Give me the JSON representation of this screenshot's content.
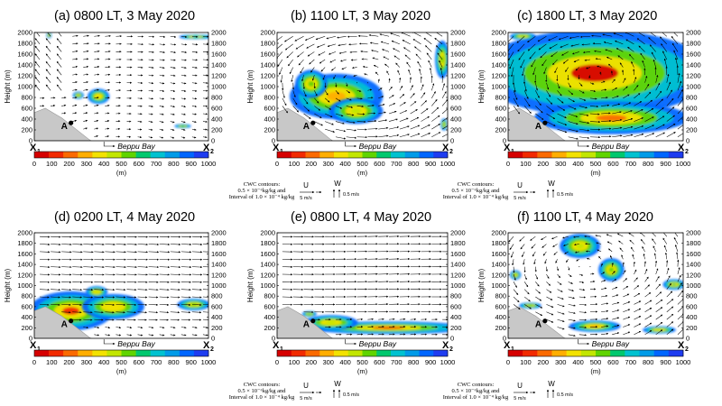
{
  "chart_data": {
    "type": "vector-field-with-color-shading",
    "panels": [
      {
        "id": "a",
        "title": "(a)  0800 LT, 3 May 2020",
        "clouds": [
          {
            "x": 80,
            "y": 1950,
            "rx": 15,
            "ry": 60,
            "peak": 3
          },
          {
            "x": 350,
            "y": 820,
            "rx": 60,
            "ry": 140,
            "peak": 4
          },
          {
            "x": 240,
            "y": 840,
            "rx": 30,
            "ry": 70,
            "peak": 2
          },
          {
            "x": 810,
            "y": 270,
            "rx": 45,
            "ry": 40,
            "peak": 1
          },
          {
            "x": 880,
            "y": 1920,
            "rx": 90,
            "ry": 45,
            "peak": 0
          }
        ]
      },
      {
        "id": "b",
        "title": "(b)  1100 LT, 3 May 2020",
        "clouds": [
          {
            "x": 330,
            "y": 820,
            "rx": 260,
            "ry": 420,
            "peak": 5
          },
          {
            "x": 440,
            "y": 550,
            "rx": 150,
            "ry": 240,
            "peak": 3
          },
          {
            "x": 190,
            "y": 1050,
            "rx": 90,
            "ry": 260,
            "peak": 2
          },
          {
            "x": 920,
            "y": 1500,
            "rx": 40,
            "ry": 350,
            "peak": 2
          },
          {
            "x": 930,
            "y": 300,
            "rx": 20,
            "ry": 110,
            "peak": 1
          }
        ]
      },
      {
        "id": "c",
        "title": "(c)  1800 LT, 3 May 2020",
        "clouds": [
          {
            "x": 470,
            "y": 1250,
            "rx": 640,
            "ry": 800,
            "peak": 9
          },
          {
            "x": 560,
            "y": 420,
            "rx": 420,
            "ry": 300,
            "peak": 6
          },
          {
            "x": 80,
            "y": 1930,
            "rx": 70,
            "ry": 70,
            "peak": 2
          }
        ]
      },
      {
        "id": "d",
        "title": "(d)  0200 LT, 4 May 2020",
        "clouds": [
          {
            "x": 200,
            "y": 520,
            "rx": 230,
            "ry": 370,
            "peak": 7
          },
          {
            "x": 430,
            "y": 600,
            "rx": 170,
            "ry": 240,
            "peak": 4
          },
          {
            "x": 340,
            "y": 880,
            "rx": 60,
            "ry": 110,
            "peak": 3
          },
          {
            "x": 870,
            "y": 640,
            "rx": 90,
            "ry": 110,
            "peak": 2
          }
        ]
      },
      {
        "id": "e",
        "title": "(e)  0800 LT, 4 May 2020",
        "clouds": [
          {
            "x": 620,
            "y": 200,
            "rx": 460,
            "ry": 120,
            "peak": 7
          },
          {
            "x": 300,
            "y": 300,
            "rx": 150,
            "ry": 140,
            "peak": 3
          },
          {
            "x": 180,
            "y": 460,
            "rx": 40,
            "ry": 60,
            "peak": 1
          }
        ]
      },
      {
        "id": "f",
        "title": "(f)  1100 LT, 4 May 2020",
        "clouds": [
          {
            "x": 390,
            "y": 1750,
            "rx": 110,
            "ry": 230,
            "peak": 3
          },
          {
            "x": 560,
            "y": 1300,
            "rx": 70,
            "ry": 220,
            "peak": 2
          },
          {
            "x": 470,
            "y": 230,
            "rx": 140,
            "ry": 110,
            "peak": 5
          },
          {
            "x": 820,
            "y": 160,
            "rx": 90,
            "ry": 70,
            "peak": 3
          },
          {
            "x": 40,
            "y": 1200,
            "rx": 30,
            "ry": 90,
            "peak": 2
          },
          {
            "x": 120,
            "y": 620,
            "rx": 60,
            "ry": 60,
            "peak": 2
          },
          {
            "x": 900,
            "y": 1020,
            "rx": 60,
            "ry": 100,
            "peak": 1
          }
        ]
      }
    ],
    "x_range": [
      0,
      950
    ],
    "y_range": [
      0,
      2000
    ],
    "ylabel": "Height (m)",
    "yticks": [
      0,
      200,
      400,
      600,
      800,
      1000,
      1200,
      1400,
      1600,
      1800,
      2000
    ],
    "colorbar": {
      "ticks": [
        0,
        100,
        200,
        300,
        400,
        500,
        600,
        700,
        800,
        900,
        1000
      ],
      "unit": "(m)",
      "colors": [
        "#d60000",
        "#f22a00",
        "#fb6a00",
        "#ffae00",
        "#f3e200",
        "#c2e600",
        "#60d400",
        "#00c86e",
        "#00c2d0",
        "#009be8",
        "#0066ff",
        "#1e3cf0"
      ]
    },
    "terrain": [
      [
        0,
        520
      ],
      [
        60,
        600
      ],
      [
        150,
        420
      ],
      [
        240,
        180
      ],
      [
        300,
        20
      ],
      [
        310,
        0
      ]
    ],
    "point_A": {
      "x": 200,
      "y": 330,
      "label": "A"
    },
    "x_start_label": "X",
    "x_start_sub": "1",
    "x_end_label": "X",
    "x_end_sub": "2",
    "bay_label": "Beppu Bay",
    "wind_legend": {
      "cwc_title": "CWC contours:",
      "cwc_line1": "0.5 × 10⁻⁶kg/kg and",
      "cwc_line2": "Interval of 1.0 × 10⁻⁴ kg/kg",
      "u_label": "U",
      "u_scale": "5 m/s",
      "w_label": "W",
      "w_scale": "0.5 m/s"
    }
  }
}
